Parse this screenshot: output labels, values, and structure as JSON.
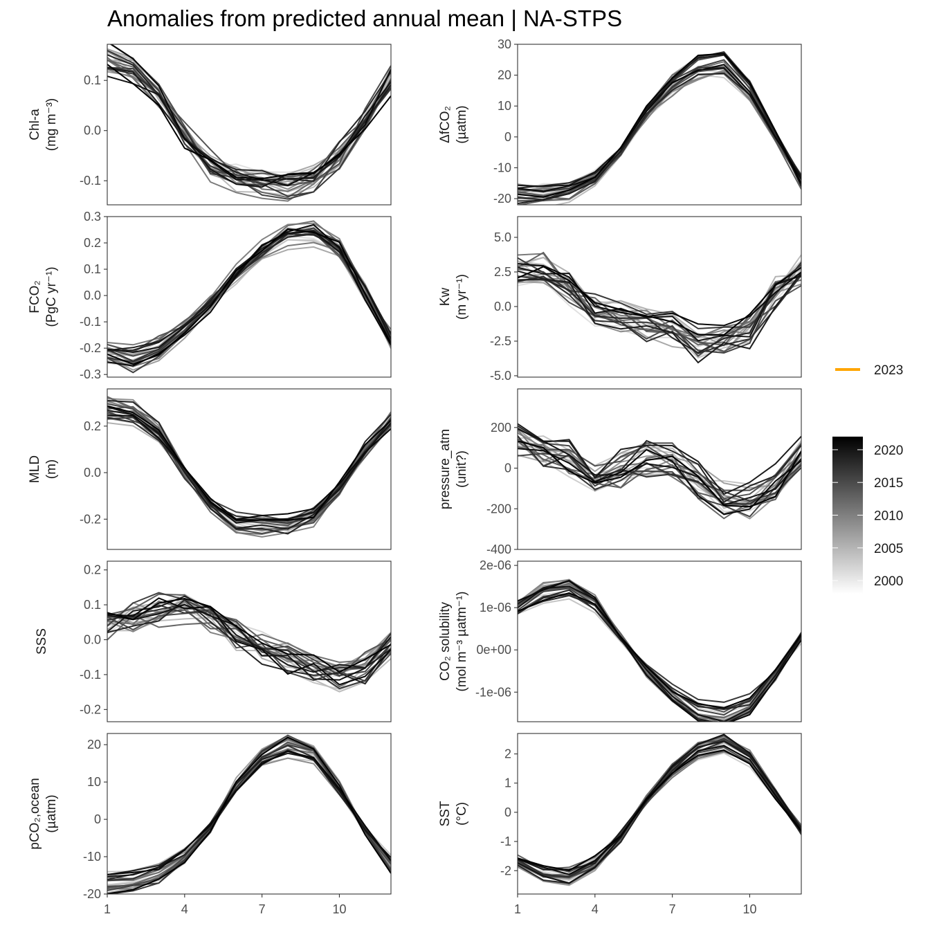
{
  "title": "Anomalies from predicted annual mean | NA-STPS",
  "chart_data": {
    "type": "line",
    "x_label": "",
    "x_ticks": [
      1,
      4,
      7,
      10
    ],
    "x_range": [
      1,
      12
    ],
    "legend": {
      "highlight_series": {
        "name": "2023",
        "color": "#FFA500"
      },
      "colorbar": {
        "labels": [
          "2020",
          "2015",
          "2010",
          "2005",
          "2000"
        ],
        "range": [
          1998,
          2022
        ],
        "low_color": "#ffffff",
        "high_color": "#000000"
      }
    },
    "panels": [
      {
        "id": "chl",
        "label": [
          "Chl-a",
          "(mg m⁻³)"
        ],
        "ylim": [
          -0.148,
          0.172
        ],
        "ticks": [
          -0.1,
          0.0,
          0.1
        ],
        "tick_labels": [
          "-0.1",
          "0.0",
          "0.1"
        ],
        "mean": [
          0.14,
          0.12,
          0.07,
          -0.01,
          -0.07,
          -0.09,
          -0.1,
          -0.105,
          -0.095,
          -0.05,
          0.02,
          0.1
        ],
        "spread": 0.035
      },
      {
        "id": "dfco2",
        "label": [
          "ΔfCO₂",
          "(µatm)"
        ],
        "ylim": [
          -22,
          30
        ],
        "ticks": [
          -20,
          -10,
          0,
          10,
          20,
          30
        ],
        "tick_labels": [
          "-20",
          "-10",
          "0",
          "10",
          "20",
          "30"
        ],
        "mean": [
          -19,
          -19,
          -18,
          -14,
          -5,
          8,
          17,
          23,
          24,
          15,
          0,
          -14
        ],
        "spread": 2.5
      },
      {
        "id": "fco2",
        "label": [
          "FCO₂",
          "(PgC yr⁻¹)"
        ],
        "ylim": [
          -0.31,
          0.3
        ],
        "ticks": [
          -0.3,
          -0.2,
          -0.1,
          0.0,
          0.1,
          0.2,
          0.3
        ],
        "tick_labels": [
          "-0.3",
          "-0.2",
          "-0.1",
          "0.0",
          "0.1",
          "0.2",
          "0.3"
        ],
        "mean": [
          -0.22,
          -0.24,
          -0.2,
          -0.12,
          -0.03,
          0.08,
          0.17,
          0.23,
          0.25,
          0.18,
          0.01,
          -0.17
        ],
        "spread": 0.04
      },
      {
        "id": "kw",
        "label": [
          "Kw",
          "(m yr⁻¹)"
        ],
        "ylim": [
          -5.1,
          6.5
        ],
        "ticks": [
          -5.0,
          -2.5,
          0.0,
          2.5,
          5.0
        ],
        "tick_labels": [
          "-5.0",
          "-2.5",
          "0.0",
          "2.5",
          "5.0"
        ],
        "mean": [
          2.8,
          2.7,
          1.4,
          -0.2,
          -0.9,
          -1.4,
          -1.6,
          -2.6,
          -2.4,
          -1.7,
          1.0,
          2.5
        ],
        "spread": 1.6
      },
      {
        "id": "mld",
        "label": [
          "MLD",
          "(m)"
        ],
        "ylim": [
          -0.33,
          0.36
        ],
        "ticks": [
          -0.2,
          0.0,
          0.2
        ],
        "tick_labels": [
          "-0.2",
          "0.0",
          "0.2"
        ],
        "mean": [
          0.28,
          0.26,
          0.18,
          0.0,
          -0.14,
          -0.22,
          -0.23,
          -0.23,
          -0.19,
          -0.07,
          0.1,
          0.23
        ],
        "spread": 0.035
      },
      {
        "id": "patm",
        "label": [
          "pressure_atm",
          "(unit?)"
        ],
        "ylim": [
          -400,
          390
        ],
        "ticks": [
          -400,
          -200,
          0,
          200
        ],
        "tick_labels": [
          "-400",
          "-200",
          "0",
          "200"
        ],
        "mean": [
          150,
          90,
          60,
          -40,
          -10,
          40,
          40,
          -60,
          -150,
          -160,
          -60,
          80
        ],
        "spread": 120
      },
      {
        "id": "sss",
        "label": [
          "SSS",
          ""
        ],
        "ylim": [
          -0.235,
          0.225
        ],
        "ticks": [
          -0.2,
          -0.1,
          0.0,
          0.1,
          0.2
        ],
        "tick_labels": [
          "-0.2",
          "-0.1",
          "0.0",
          "0.1",
          "0.2"
        ],
        "mean": [
          0.04,
          0.06,
          0.08,
          0.09,
          0.06,
          0.01,
          -0.03,
          -0.06,
          -0.08,
          -0.1,
          -0.08,
          -0.01
        ],
        "spread": 0.06
      },
      {
        "id": "sol",
        "label": [
          "CO₂ solubility",
          "(mol m⁻³ µatm⁻¹)"
        ],
        "ylim": [
          -1.7e-06,
          2.1e-06
        ],
        "ticks": [
          -1e-06,
          0,
          1e-06,
          2e-06
        ],
        "tick_labels": [
          "-1e-06",
          "0e+00",
          "1e-06",
          "2e-06"
        ],
        "mean": [
          1e-06,
          1.35e-06,
          1.45e-06,
          1.1e-06,
          3e-07,
          -5e-07,
          -1.1e-06,
          -1.5e-06,
          -1.6e-06,
          -1.35e-06,
          -6e-07,
          3e-07
        ],
        "spread": 1.5e-07
      },
      {
        "id": "pco2",
        "label": [
          "pCO₂,ocean",
          "(µatm)"
        ],
        "ylim": [
          -20,
          23
        ],
        "ticks": [
          -20,
          -10,
          0,
          10,
          20
        ],
        "tick_labels": [
          "-20",
          "-10",
          "0",
          "10",
          "20"
        ],
        "mean": [
          -17,
          -16.5,
          -14.5,
          -10,
          -2,
          9,
          16.5,
          19.5,
          17.5,
          8,
          -3,
          -12
        ],
        "spread": 1.6
      },
      {
        "id": "sst",
        "label": [
          "SST",
          "(°C)"
        ],
        "ylim": [
          -2.8,
          2.7
        ],
        "ticks": [
          -2,
          -1,
          0,
          1,
          2
        ],
        "tick_labels": [
          "-2",
          "-1",
          "0",
          "1",
          "2"
        ],
        "mean": [
          -1.6,
          -2.0,
          -2.1,
          -1.7,
          -0.8,
          0.4,
          1.4,
          2.1,
          2.3,
          1.8,
          0.6,
          -0.6
        ],
        "spread": 0.2
      }
    ]
  }
}
